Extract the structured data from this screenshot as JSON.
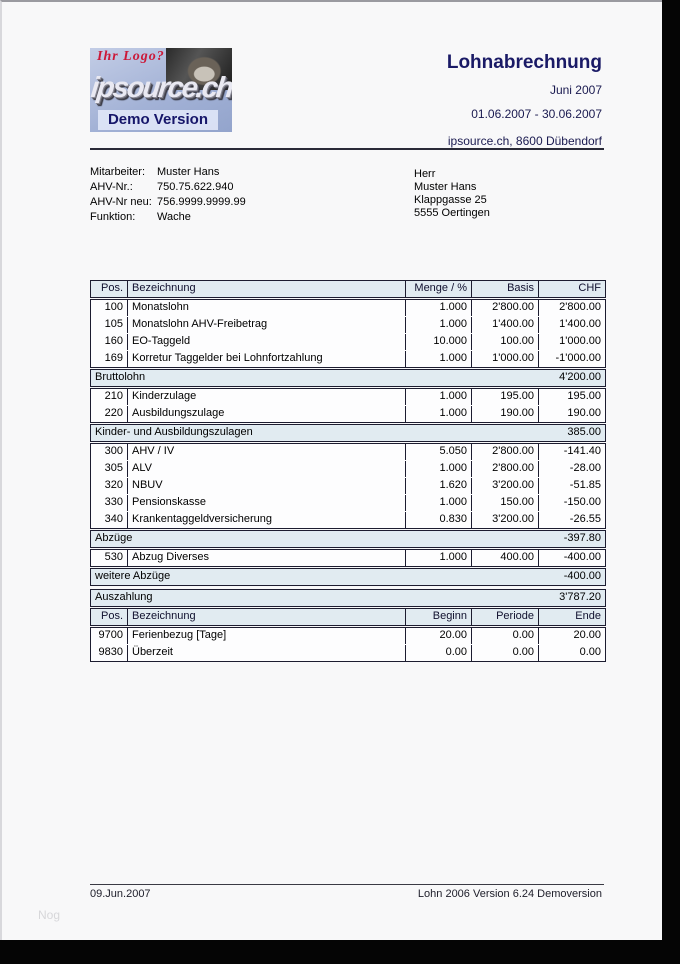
{
  "header": {
    "title": "Lohnabrechnung",
    "month": "Juni 2007",
    "range": "01.06.2007 - 30.06.2007",
    "company": "ipsource.ch, 8600 Dübendorf"
  },
  "logo": {
    "claim": "Ihr Logo?",
    "brand": "ipsource.ch",
    "version": "Demo Version"
  },
  "employee": {
    "rows": [
      {
        "label": "Mitarbeiter:",
        "value": "Muster Hans"
      },
      {
        "label": "AHV-Nr.:",
        "value": "750.75.622.940"
      },
      {
        "label": "AHV-Nr neu:",
        "value": "756.9999.9999.99"
      },
      {
        "label": "Funktion:",
        "value": "Wache"
      }
    ]
  },
  "address": [
    "Herr",
    "Muster Hans",
    "Klappgasse 25",
    "5555 Oertingen"
  ],
  "salary_table": {
    "blocks": [
      {
        "type": "header",
        "cells": [
          "Pos.",
          "Bezeichnung",
          "Menge / %",
          "Basis",
          "CHF"
        ]
      },
      {
        "type": "rows",
        "rows": [
          [
            "100",
            "Monatslohn",
            "1.000",
            "2'800.00",
            "2'800.00"
          ],
          [
            "105",
            "Monatslohn AHV-Freibetrag",
            "1.000",
            "1'400.00",
            "1'400.00"
          ],
          [
            "160",
            "EO-Taggeld",
            "10.000",
            "100.00",
            "1'000.00"
          ],
          [
            "169",
            "Korretur Taggelder bei Lohnfortzahlung",
            "1.000",
            "1'000.00",
            "-1'000.00"
          ]
        ]
      },
      {
        "type": "summary",
        "label": "Bruttolohn",
        "value": "4'200.00"
      },
      {
        "type": "rows",
        "rows": [
          [
            "210",
            "Kinderzulage",
            "1.000",
            "195.00",
            "195.00"
          ],
          [
            "220",
            "Ausbildungszulage",
            "1.000",
            "190.00",
            "190.00"
          ]
        ]
      },
      {
        "type": "summary",
        "label": "Kinder- und Ausbildungszulagen",
        "value": "385.00"
      },
      {
        "type": "rows",
        "rows": [
          [
            "300",
            "AHV / IV",
            "5.050",
            "2'800.00",
            "-141.40"
          ],
          [
            "305",
            "ALV",
            "1.000",
            "2'800.00",
            "-28.00"
          ],
          [
            "320",
            "NBUV",
            "1.620",
            "3'200.00",
            "-51.85"
          ],
          [
            "330",
            "Pensionskasse",
            "1.000",
            "150.00",
            "-150.00"
          ],
          [
            "340",
            "Krankentaggeldversicherung",
            "0.830",
            "3'200.00",
            "-26.55"
          ]
        ]
      },
      {
        "type": "summary",
        "label": "Abzüge",
        "value": "-397.80"
      },
      {
        "type": "rows",
        "rows": [
          [
            "530",
            "Abzug Diverses",
            "1.000",
            "400.00",
            "-400.00"
          ]
        ]
      },
      {
        "type": "summary",
        "label": "weitere Abzüge",
        "value": "-400.00"
      },
      {
        "type": "summary",
        "label": "Auszahlung",
        "value": "3'787.20",
        "gap": true
      }
    ]
  },
  "balance_table": {
    "blocks": [
      {
        "type": "header",
        "cells": [
          "Pos.",
          "Bezeichnung",
          "Beginn",
          "Periode",
          "Ende"
        ]
      },
      {
        "type": "rows",
        "rows": [
          [
            "9700",
            "Ferienbezug [Tage]",
            "20.00",
            "0.00",
            "20.00"
          ],
          [
            "9830",
            "Überzeit",
            "0.00",
            "0.00",
            "0.00"
          ]
        ]
      }
    ]
  },
  "footer": {
    "date": "09.Jun.2007",
    "version": "Lohn 2006 Version 6.24  Demoversion"
  },
  "watermark": "Nog"
}
